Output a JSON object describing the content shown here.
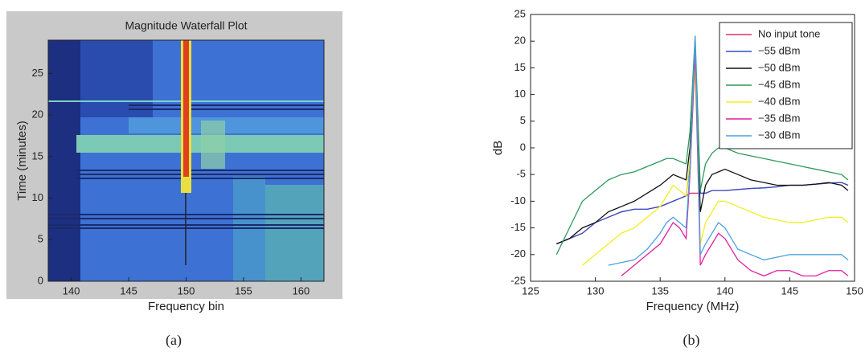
{
  "chart_data": [
    {
      "type": "heatmap",
      "title": "Magnitude Waterfall Plot",
      "xlabel": "Frequency bin",
      "ylabel": "Time (minutes)",
      "xlim": [
        138,
        162
      ],
      "ylim": [
        0,
        29
      ],
      "xticks": [
        140,
        145,
        150,
        155,
        160
      ],
      "yticks": [
        0,
        5,
        10,
        15,
        20,
        25
      ],
      "caption": "(a)"
    },
    {
      "type": "line",
      "xlabel": "Frequency (MHz)",
      "ylabel": "dB",
      "xlim": [
        125,
        150
      ],
      "ylim": [
        -25,
        25
      ],
      "xticks": [
        125,
        130,
        135,
        140,
        145,
        150
      ],
      "yticks": [
        -25,
        -20,
        -15,
        -10,
        -5,
        0,
        5,
        10,
        15,
        20,
        25
      ],
      "legend": "upper right",
      "caption": "(b)",
      "x": [
        127,
        128,
        129,
        130,
        131,
        132,
        133,
        134,
        135,
        135.5,
        136,
        136.5,
        137,
        137.3,
        137.7,
        138.1,
        138.5,
        139,
        139.5,
        140,
        141,
        142,
        143,
        144,
        145,
        146,
        147,
        148,
        149,
        149.5
      ],
      "series": [
        {
          "name": "No input tone",
          "color": "#e0306a",
          "values": [
            -18,
            -17,
            -16,
            -14,
            -13,
            -12,
            -11.5,
            -11.5,
            -11,
            -10.5,
            -10,
            -9.5,
            -9,
            -8.5,
            -8.5,
            -8.5,
            -8.5,
            -8,
            -8,
            -8,
            -7.8,
            -7.6,
            -7.5,
            -7.3,
            -7,
            -7,
            -6.8,
            -6.6,
            -6.5,
            -7
          ]
        },
        {
          "name": "−55 dBm",
          "color": "#3050c8",
          "values": [
            -18,
            -17,
            -16,
            -14,
            -13,
            -12,
            -11.5,
            -11.5,
            -11,
            -10.5,
            -10,
            -9.5,
            -9,
            -3,
            18,
            -8.5,
            -8.5,
            -8,
            -8,
            -8,
            -7.8,
            -7.6,
            -7.5,
            -7.3,
            -7,
            -7,
            -6.8,
            -6.6,
            -6.5,
            -7
          ]
        },
        {
          "name": "−50 dBm",
          "color": "#111111",
          "values": [
            -18,
            -17,
            -15,
            -14,
            -12,
            -11,
            -10,
            -8.5,
            -7,
            -6,
            -5,
            -5.5,
            -6,
            0,
            17,
            -12,
            -7,
            -5,
            -4.5,
            -4,
            -5,
            -6,
            -6.5,
            -7,
            -7,
            -7,
            -6.8,
            -6.5,
            -7,
            -8
          ]
        },
        {
          "name": "−45 dBm",
          "color": "#2e9a5a",
          "values": [
            -20,
            -15,
            -10,
            -8,
            -6,
            -5,
            -4.5,
            -3.5,
            -2.5,
            -2,
            -2,
            -2.5,
            -3,
            3,
            21,
            -8,
            -3,
            -1,
            0,
            0,
            -1,
            -1.5,
            -2,
            -2.5,
            -3,
            -3.5,
            -4,
            -4.5,
            -5,
            -6
          ]
        },
        {
          "name": "−40 dBm",
          "color": "#f0f020",
          "values": [
            null,
            null,
            -22,
            -20,
            -18,
            -16,
            -15,
            -13,
            -11,
            -9,
            -7,
            -8,
            -9,
            -2,
            15,
            -18,
            -14,
            -12,
            -10,
            -10,
            -11,
            -12,
            -13,
            -13.5,
            -14,
            -14,
            -13.5,
            -13,
            -13,
            -14
          ]
        },
        {
          "name": "−35 dBm",
          "color": "#e020a0",
          "values": [
            null,
            null,
            null,
            null,
            null,
            -24,
            -22,
            -20,
            -18,
            -16,
            -14,
            -15,
            -17,
            -5,
            18,
            -22,
            -20,
            -18,
            -16,
            -17,
            -21,
            -23,
            -24,
            -23,
            -23,
            -24,
            -24,
            -23,
            -23,
            -24
          ]
        },
        {
          "name": "−30 dBm",
          "color": "#4aa0e0",
          "values": [
            null,
            null,
            null,
            null,
            -22,
            -21.5,
            -21,
            -19,
            -16,
            -14,
            -13,
            -14,
            -15,
            -4,
            21,
            -20,
            -18,
            -16,
            -14,
            -15,
            -19,
            -20,
            -21,
            -20.5,
            -20,
            -20,
            -20,
            -20,
            -20,
            -21
          ]
        }
      ]
    }
  ]
}
